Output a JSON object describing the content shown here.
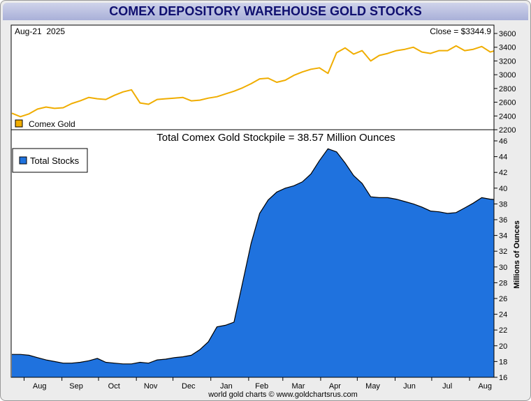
{
  "title": "COMEX DEPOSITORY WAREHOUSE GOLD STOCKS",
  "footer": "world gold charts © www.goldchartsrus.com",
  "colors": {
    "gold": "#f0ad00",
    "stocks": "#1f72de",
    "title_text": "#101070"
  },
  "chart_data": [
    {
      "type": "line",
      "date_label": "Aug-21  2025",
      "close_label": "Close = $3344.9",
      "legend": "Comex Gold",
      "ylim": [
        2200,
        3700
      ],
      "yticks": [
        2200,
        2400,
        2600,
        2800,
        3000,
        3200,
        3400,
        3600
      ],
      "x": [
        "2024-07-22",
        "2024-07-29",
        "2024-08-05",
        "2024-08-12",
        "2024-08-19",
        "2024-08-26",
        "2024-09-02",
        "2024-09-09",
        "2024-09-16",
        "2024-09-23",
        "2024-09-30",
        "2024-10-07",
        "2024-10-14",
        "2024-10-21",
        "2024-10-28",
        "2024-11-04",
        "2024-11-11",
        "2024-11-18",
        "2024-11-25",
        "2024-12-02",
        "2024-12-09",
        "2024-12-16",
        "2024-12-23",
        "2024-12-30",
        "2025-01-06",
        "2025-01-13",
        "2025-01-20",
        "2025-01-27",
        "2025-02-03",
        "2025-02-10",
        "2025-02-17",
        "2025-02-24",
        "2025-03-03",
        "2025-03-10",
        "2025-03-17",
        "2025-03-24",
        "2025-03-31",
        "2025-04-07",
        "2025-04-14",
        "2025-04-21",
        "2025-04-28",
        "2025-05-05",
        "2025-05-12",
        "2025-05-19",
        "2025-05-26",
        "2025-06-02",
        "2025-06-09",
        "2025-06-16",
        "2025-06-23",
        "2025-06-30",
        "2025-07-07",
        "2025-07-14",
        "2025-07-21",
        "2025-07-28",
        "2025-08-04",
        "2025-08-11",
        "2025-08-18",
        "2025-08-21"
      ],
      "series": [
        {
          "name": "Comex Gold",
          "values": [
            2440,
            2390,
            2430,
            2500,
            2530,
            2510,
            2520,
            2580,
            2620,
            2670,
            2650,
            2640,
            2700,
            2750,
            2780,
            2590,
            2570,
            2640,
            2650,
            2660,
            2670,
            2620,
            2630,
            2660,
            2680,
            2720,
            2760,
            2810,
            2870,
            2940,
            2950,
            2890,
            2920,
            2990,
            3040,
            3080,
            3100,
            3020,
            3320,
            3390,
            3300,
            3350,
            3200,
            3280,
            3310,
            3350,
            3370,
            3400,
            3330,
            3310,
            3350,
            3350,
            3420,
            3350,
            3370,
            3410,
            3330,
            3345
          ]
        }
      ]
    },
    {
      "type": "area",
      "title": "Total Comex Gold Stockpile = 38.57 Million Ounces",
      "legend": "Total Stocks",
      "ylabel": "Millions of Ounces",
      "ylim": [
        16,
        47
      ],
      "yticks": [
        16,
        18,
        20,
        22,
        24,
        26,
        28,
        30,
        32,
        34,
        36,
        38,
        40,
        42,
        44,
        46
      ],
      "xticklabels": [
        "Aug",
        "Sep",
        "Oct",
        "Nov",
        "Dec",
        "Jan",
        "Feb",
        "Mar",
        "Apr",
        "May",
        "Jun",
        "Jul",
        "Aug"
      ],
      "x": [
        "2024-07-22",
        "2024-07-29",
        "2024-08-05",
        "2024-08-12",
        "2024-08-19",
        "2024-08-26",
        "2024-09-02",
        "2024-09-09",
        "2024-09-16",
        "2024-09-23",
        "2024-09-30",
        "2024-10-07",
        "2024-10-14",
        "2024-10-21",
        "2024-10-28",
        "2024-11-04",
        "2024-11-11",
        "2024-11-18",
        "2024-11-25",
        "2024-12-02",
        "2024-12-09",
        "2024-12-16",
        "2024-12-23",
        "2024-12-30",
        "2025-01-06",
        "2025-01-13",
        "2025-01-20",
        "2025-01-27",
        "2025-02-03",
        "2025-02-10",
        "2025-02-17",
        "2025-02-24",
        "2025-03-03",
        "2025-03-10",
        "2025-03-17",
        "2025-03-24",
        "2025-03-31",
        "2025-04-07",
        "2025-04-14",
        "2025-04-21",
        "2025-04-28",
        "2025-05-05",
        "2025-05-12",
        "2025-05-19",
        "2025-05-26",
        "2025-06-02",
        "2025-06-09",
        "2025-06-16",
        "2025-06-23",
        "2025-06-30",
        "2025-07-07",
        "2025-07-14",
        "2025-07-21",
        "2025-07-28",
        "2025-08-04",
        "2025-08-11",
        "2025-08-18",
        "2025-08-21"
      ],
      "series": [
        {
          "name": "Total Stocks",
          "values": [
            18.9,
            18.9,
            18.8,
            18.5,
            18.2,
            18.0,
            17.8,
            17.8,
            17.9,
            18.1,
            18.4,
            17.9,
            17.8,
            17.7,
            17.7,
            17.9,
            17.8,
            18.2,
            18.3,
            18.5,
            18.6,
            18.8,
            19.5,
            20.5,
            22.4,
            22.6,
            23.0,
            28.0,
            33.0,
            36.8,
            38.5,
            39.5,
            40.0,
            40.3,
            40.8,
            41.8,
            43.5,
            45.0,
            44.6,
            43.2,
            41.6,
            40.6,
            38.9,
            38.8,
            38.8,
            38.6,
            38.3,
            38.0,
            37.6,
            37.1,
            37.0,
            36.8,
            36.9,
            37.5,
            38.1,
            38.8,
            38.6,
            38.57
          ]
        }
      ]
    }
  ]
}
